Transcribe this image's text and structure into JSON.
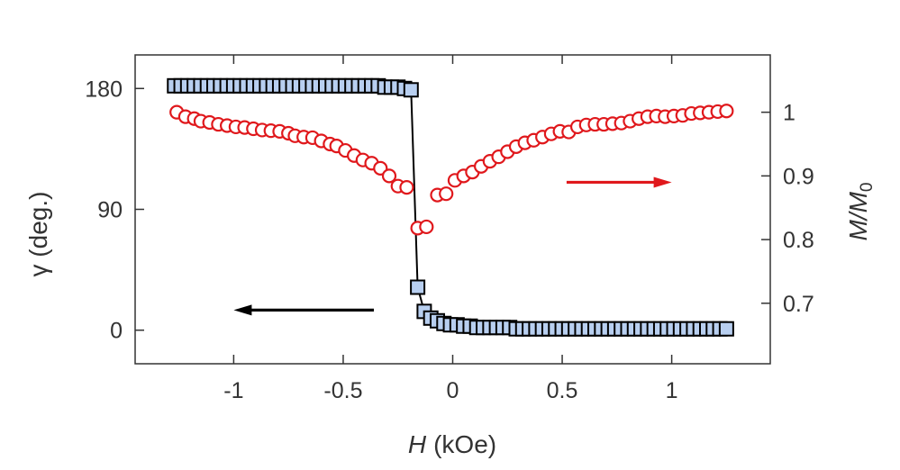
{
  "chart_data": {
    "type": "scatter",
    "xlabel": {
      "symbol": "H",
      "unit": "(kOe)"
    },
    "ylabel_left": "γ (deg.)",
    "ylabel_right": {
      "symbol": "M/M",
      "subscript": "0"
    },
    "xlim": [
      -1.45,
      1.45
    ],
    "ylim_left": [
      -25,
      205
    ],
    "ylim_right": [
      0.605,
      1.09
    ],
    "xticks": [
      -1,
      -0.5,
      0,
      0.5,
      1
    ],
    "xtick_labels": [
      "-1",
      "-0.5",
      "0",
      "0.5",
      "1"
    ],
    "yticks_left": [
      0,
      90,
      180
    ],
    "ytick_labels_left": [
      "0",
      "90",
      "180"
    ],
    "yticks_right": [
      0.7,
      0.8,
      0.9,
      1
    ],
    "ytick_labels_right": [
      "0.7",
      "0.8",
      "0.9",
      "1"
    ],
    "grid": false,
    "series": [
      {
        "axis": "left",
        "marker": "square",
        "line": true,
        "color": "#000000",
        "fill": "#b8cff0",
        "x": [
          -1.27,
          -1.24,
          -1.21,
          -1.18,
          -1.15,
          -1.12,
          -1.09,
          -1.06,
          -1.03,
          -1.0,
          -0.97,
          -0.94,
          -0.91,
          -0.88,
          -0.85,
          -0.82,
          -0.79,
          -0.76,
          -0.73,
          -0.7,
          -0.67,
          -0.64,
          -0.61,
          -0.58,
          -0.55,
          -0.52,
          -0.49,
          -0.46,
          -0.43,
          -0.4,
          -0.37,
          -0.34,
          -0.31,
          -0.28,
          -0.25,
          -0.22,
          -0.19,
          -0.16,
          -0.13,
          -0.1,
          -0.07,
          -0.04,
          -0.01,
          0.02,
          0.05,
          0.08,
          0.11,
          0.14,
          0.17,
          0.2,
          0.23,
          0.26,
          0.29,
          0.32,
          0.35,
          0.38,
          0.41,
          0.44,
          0.47,
          0.5,
          0.53,
          0.56,
          0.59,
          0.62,
          0.65,
          0.68,
          0.71,
          0.74,
          0.77,
          0.8,
          0.83,
          0.86,
          0.89,
          0.92,
          0.95,
          0.98,
          1.01,
          1.04,
          1.07,
          1.1,
          1.13,
          1.16,
          1.19,
          1.22,
          1.25
        ],
        "y": [
          182,
          182,
          182,
          182,
          182,
          182,
          182,
          182,
          182,
          182,
          182,
          182,
          182,
          182,
          182,
          182,
          182,
          182,
          182,
          182,
          182,
          182,
          182,
          182,
          182,
          182,
          182,
          182,
          182,
          182,
          182,
          182,
          181,
          181,
          181,
          180,
          179,
          32,
          14,
          9,
          7,
          5,
          4,
          4,
          3,
          3,
          2,
          2,
          2,
          2,
          2,
          2,
          1,
          1,
          1,
          1,
          1,
          1,
          1,
          1,
          1,
          1,
          1,
          1,
          1,
          1,
          1,
          1,
          1,
          1,
          1,
          1,
          1,
          1,
          1,
          1,
          1,
          1,
          1,
          1,
          1,
          1,
          1,
          1,
          1
        ]
      },
      {
        "axis": "right",
        "marker": "circle",
        "line": false,
        "color": "#e0181c",
        "fill": "#ffffff",
        "x": [
          -1.26,
          -1.22,
          -1.18,
          -1.15,
          -1.11,
          -1.07,
          -1.03,
          -0.99,
          -0.95,
          -0.91,
          -0.87,
          -0.83,
          -0.79,
          -0.75,
          -0.72,
          -0.68,
          -0.64,
          -0.6,
          -0.56,
          -0.53,
          -0.49,
          -0.45,
          -0.41,
          -0.37,
          -0.33,
          -0.29,
          -0.25,
          -0.21,
          -0.16,
          -0.12,
          -0.07,
          -0.03,
          0.01,
          0.05,
          0.09,
          0.13,
          0.17,
          0.21,
          0.25,
          0.29,
          0.33,
          0.37,
          0.41,
          0.45,
          0.49,
          0.53,
          0.57,
          0.61,
          0.65,
          0.69,
          0.73,
          0.77,
          0.81,
          0.85,
          0.89,
          0.93,
          0.97,
          1.01,
          1.05,
          1.09,
          1.13,
          1.17,
          1.21,
          1.25
        ],
        "y": [
          1.0,
          0.993,
          0.99,
          0.986,
          0.984,
          0.981,
          0.979,
          0.977,
          0.976,
          0.974,
          0.972,
          0.971,
          0.97,
          0.967,
          0.963,
          0.961,
          0.96,
          0.955,
          0.95,
          0.947,
          0.94,
          0.932,
          0.925,
          0.92,
          0.912,
          0.9,
          0.884,
          0.882,
          0.818,
          0.82,
          0.87,
          0.872,
          0.893,
          0.9,
          0.906,
          0.915,
          0.923,
          0.93,
          0.938,
          0.946,
          0.952,
          0.956,
          0.961,
          0.966,
          0.97,
          0.969,
          0.977,
          0.98,
          0.981,
          0.981,
          0.982,
          0.983,
          0.986,
          0.99,
          0.993,
          0.994,
          0.993,
          0.994,
          0.995,
          0.998,
          0.999,
          1.0,
          1.001,
          1.002
        ]
      }
    ],
    "annotations": [
      {
        "type": "arrow",
        "direction": "left",
        "color": "#000000",
        "points_to_axis": "left",
        "x_from": -0.36,
        "x_to": -1.0,
        "y": 15
      },
      {
        "type": "arrow",
        "direction": "right",
        "color": "#e0181c",
        "points_to_axis": "right",
        "x_from": 0.52,
        "x_to": 1.0,
        "y": 0.89
      }
    ]
  }
}
